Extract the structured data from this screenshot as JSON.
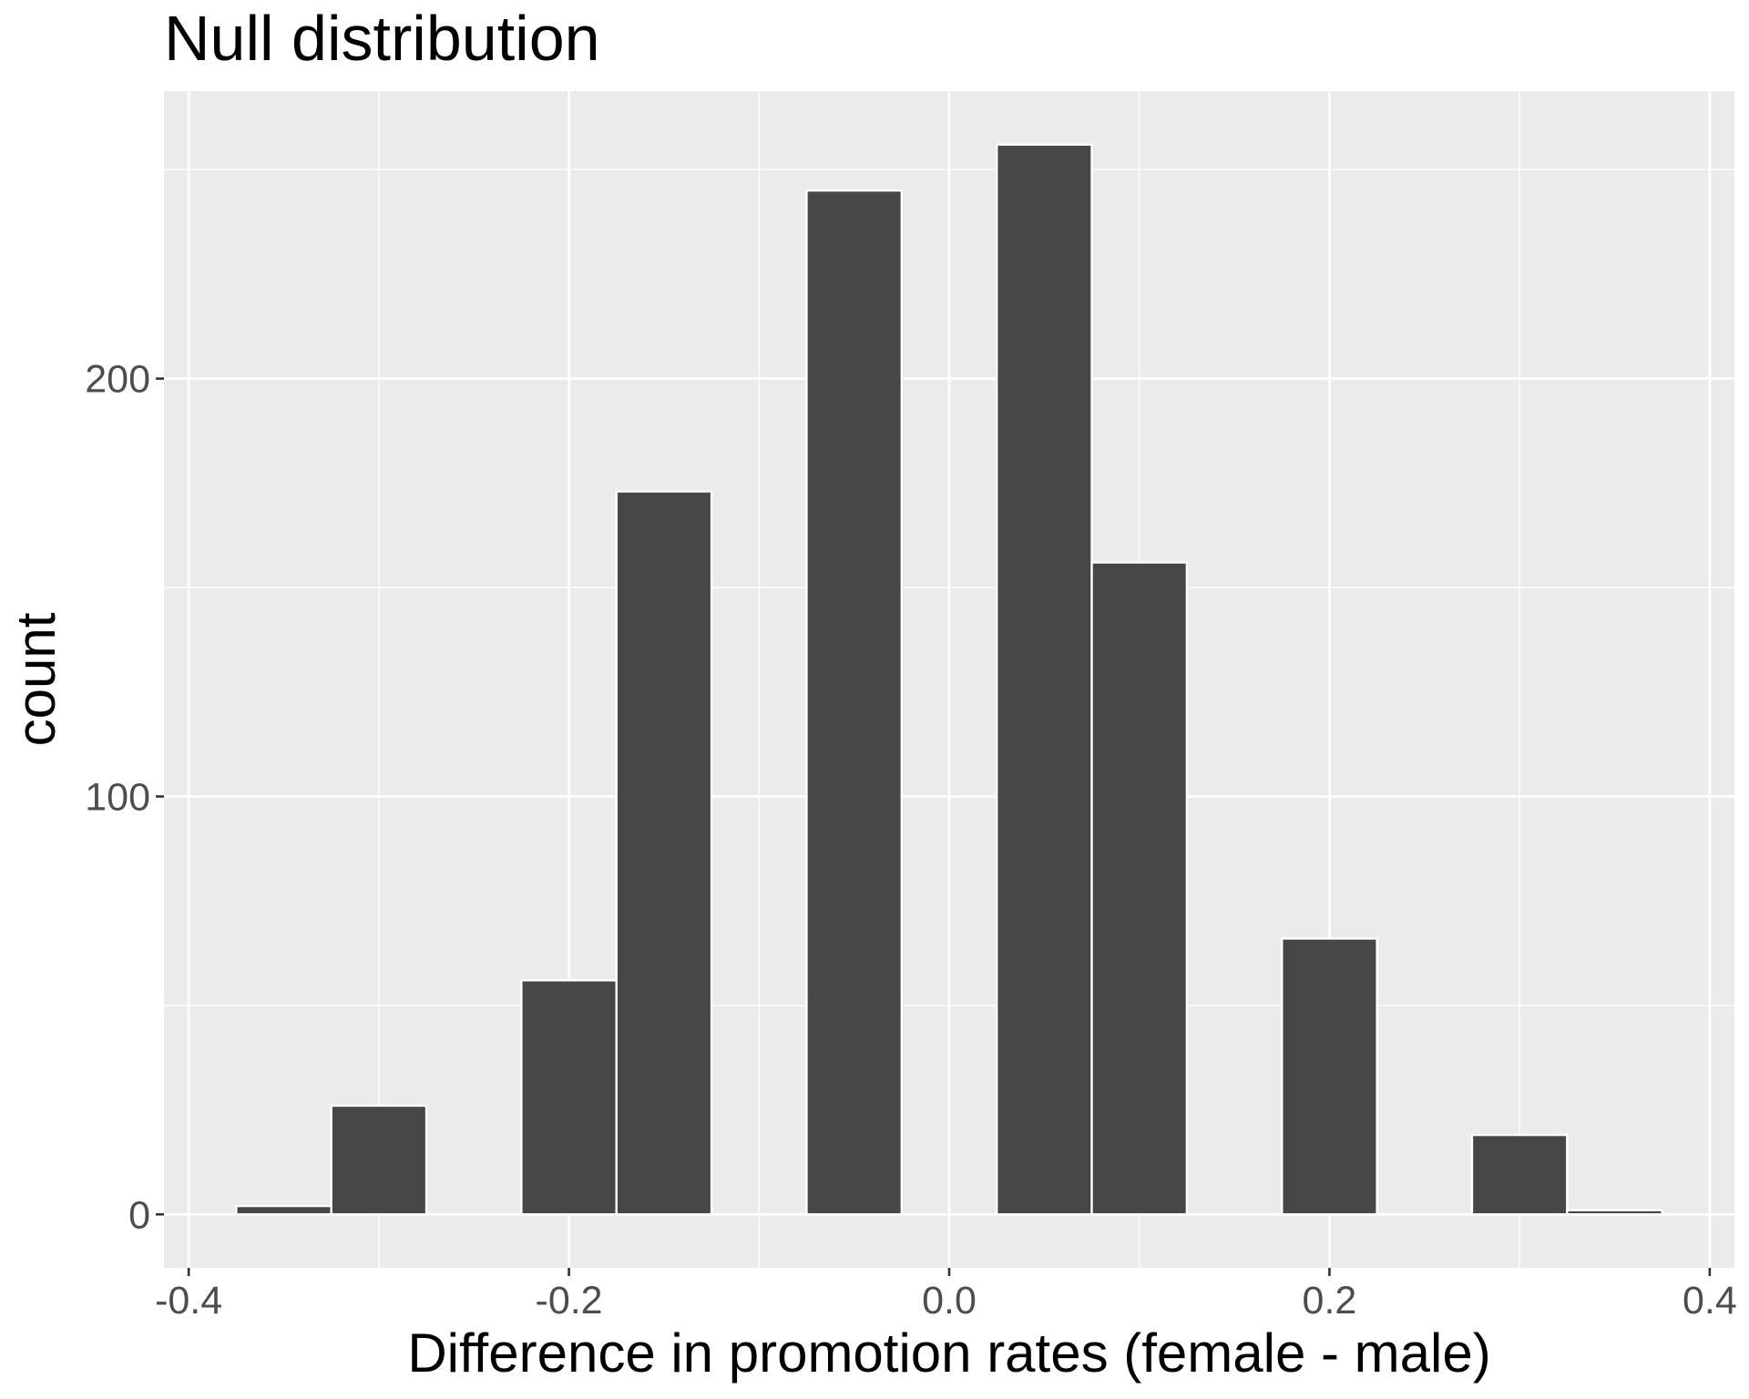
{
  "chart_data": {
    "type": "histogram",
    "title": "Null distribution",
    "x_label": "Difference in promotion rates (female - male)",
    "y_label": "count",
    "bins": [
      -0.375,
      -0.325,
      -0.275,
      -0.225,
      -0.175,
      -0.125,
      -0.075,
      -0.025,
      0.025,
      0.075,
      0.125,
      0.175,
      0.225,
      0.275,
      0.325,
      0.375
    ],
    "counts": [
      2,
      26,
      0,
      56,
      173,
      0,
      245,
      0,
      256,
      156,
      0,
      66,
      0,
      19,
      1
    ],
    "color": "#474747",
    "edge_color": "#ffffff",
    "xlim": [
      -0.413,
      0.413
    ],
    "xticks": [
      -0.4,
      -0.2,
      {
        "value": 0,
        "label": "0.0"
      },
      0.2,
      0.4
    ],
    "x_minor_breaks": [
      -0.3,
      -0.1,
      0.1,
      0.3
    ],
    "ylim": [
      -12.8,
      268.8
    ],
    "yticks": [
      0,
      100,
      200
    ],
    "y_minor_breaks": [
      50,
      150,
      250
    ],
    "grid": true
  }
}
